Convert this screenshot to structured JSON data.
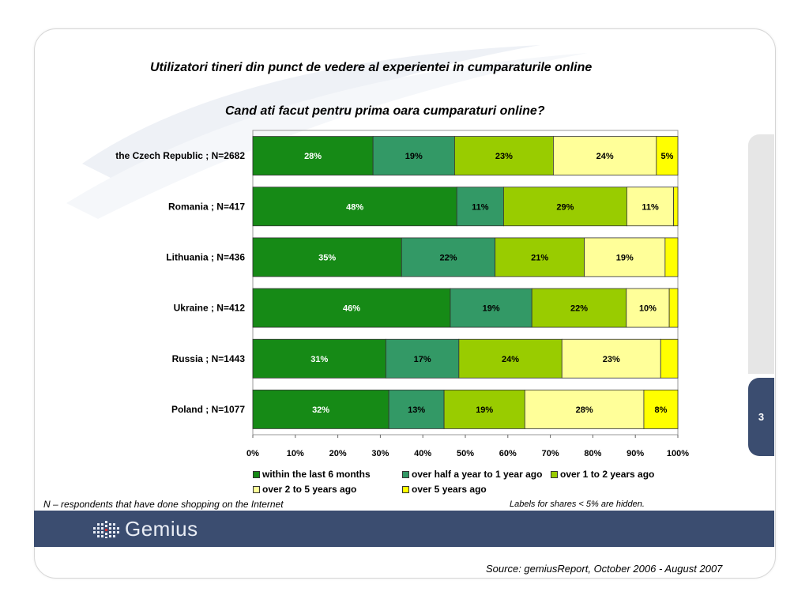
{
  "page": {
    "title": "Utilizatori tineri din punct de vedere al experientei in cumparaturile online",
    "subtitle": "Cand ati facut pentru prima oara cumparaturi online?",
    "footnote": "N – respondents that have done shopping on the Internet",
    "note": "Labels for shares < 5% are hidden.",
    "source": "Source: gemiusReport, October 2006 - August 2007",
    "page_number": "3",
    "logo_text": "Gemius"
  },
  "colors": {
    "within the last 6 months": "#168a16",
    "over half a year to 1 year ago": "#339966",
    "over 1 to 2 years ago": "#99cc00",
    "over 2 to 5 years ago": "#ffff99",
    "over 5 years ago": "#ffff00",
    "band": "#3b4d70"
  },
  "chart_data": {
    "type": "bar",
    "orientation": "horizontal-stacked-100",
    "categories": [
      "the Czech Republic ; N=2682",
      "Romania ; N=417",
      "Lithuania ; N=436",
      "Ukraine ; N=412",
      "Russia ; N=1443",
      "Poland ; N=1077"
    ],
    "series": [
      {
        "name": "within the last 6 months",
        "values": [
          28,
          48,
          35,
          46,
          31,
          32
        ],
        "labels": [
          "28%",
          "48%",
          "35%",
          "46%",
          "31%",
          "32%"
        ]
      },
      {
        "name": "over half a year to 1 year ago",
        "values": [
          19,
          11,
          22,
          19,
          17,
          13
        ],
        "labels": [
          "19%",
          "11%",
          "22%",
          "19%",
          "17%",
          "13%"
        ]
      },
      {
        "name": "over 1 to 2 years ago",
        "values": [
          23,
          29,
          21,
          22,
          24,
          19
        ],
        "labels": [
          "23%",
          "29%",
          "21%",
          "22%",
          "24%",
          "19%"
        ]
      },
      {
        "name": "over 2 to 5 years ago",
        "values": [
          24,
          11,
          19,
          10,
          23,
          28
        ],
        "labels": [
          "24%",
          "11%",
          "19%",
          "10%",
          "23%",
          "28%"
        ]
      },
      {
        "name": "over 5 years ago",
        "values": [
          5,
          1,
          3,
          2,
          4,
          8
        ],
        "labels": [
          "5%",
          "",
          "",
          "",
          "",
          "8%"
        ]
      }
    ],
    "xticks": [
      "0%",
      "10%",
      "20%",
      "30%",
      "40%",
      "50%",
      "60%",
      "70%",
      "80%",
      "90%",
      "100%"
    ],
    "xlim": [
      0,
      100
    ],
    "legend": "bottom",
    "grid": false
  }
}
